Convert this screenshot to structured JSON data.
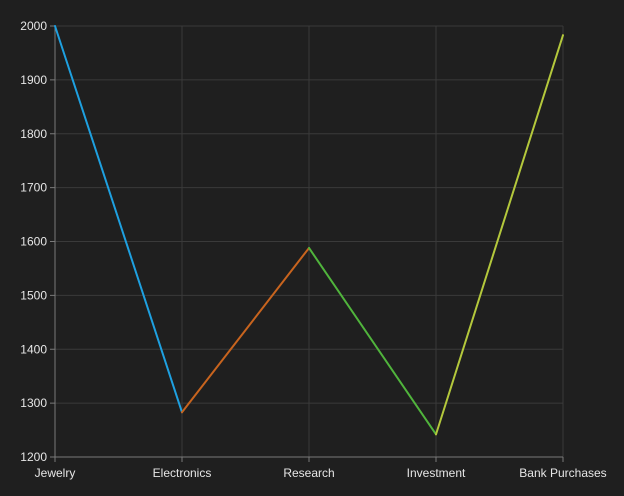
{
  "chart_data": {
    "type": "line",
    "categories": [
      "Jewelry",
      "Electronics",
      "Research",
      "Investment",
      "Bank Purchases"
    ],
    "values": [
      2000,
      1283,
      1588,
      1242,
      1983
    ],
    "segment_colors": [
      "#1ea0e0",
      "#c8641e",
      "#50b43c",
      "#b4c83c"
    ],
    "ylim": [
      1200,
      2000
    ],
    "yticks": [
      1200,
      1300,
      1400,
      1500,
      1600,
      1700,
      1800,
      1900,
      2000
    ],
    "grid": true,
    "background": "#1f1f1f",
    "grid_color": "#3a3a3a",
    "axis_color": "#7a7a7a",
    "text_color": "#e6e6e6"
  }
}
